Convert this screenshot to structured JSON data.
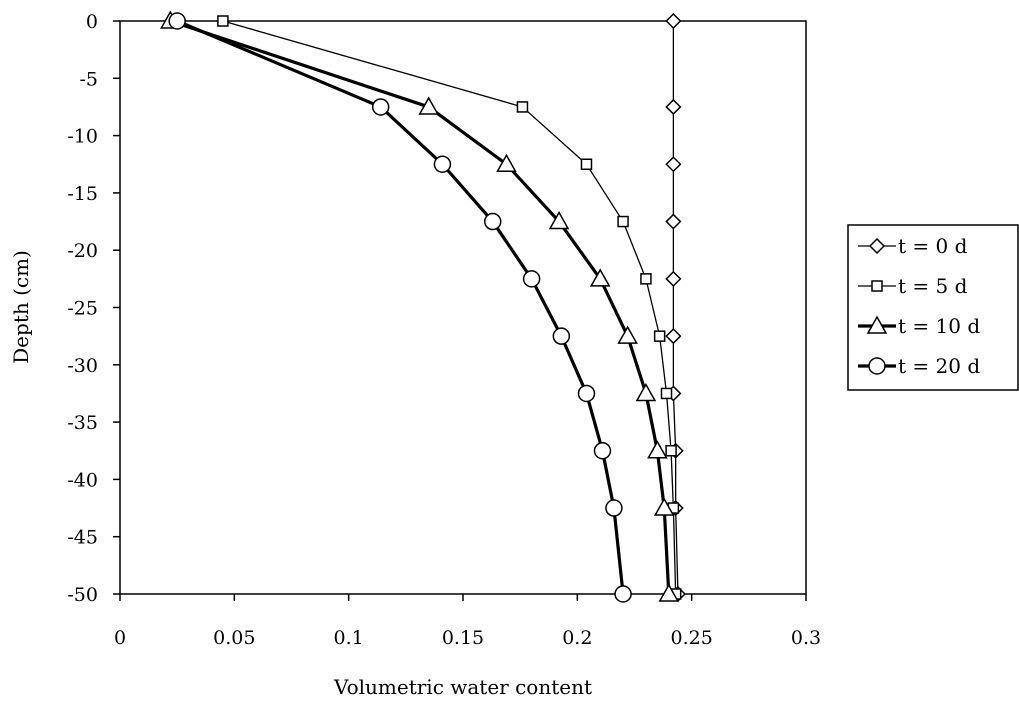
{
  "chart_data": {
    "type": "line",
    "title": "",
    "xlabel": "Volumetric water content",
    "ylabel": "Depth (cm)",
    "xlim": [
      0,
      0.3
    ],
    "ylim": [
      -50,
      0
    ],
    "xticks": [
      "0",
      "0.05",
      "0.1",
      "0.15",
      "0.2",
      "0.25",
      "0.3"
    ],
    "yticks": [
      "0",
      "-5",
      "-10",
      "-15",
      "-20",
      "-25",
      "-30",
      "-35",
      "-40",
      "-45",
      "-50"
    ],
    "grid": false,
    "legend_position": "right",
    "series": [
      {
        "name": "t = 0 d",
        "marker": "diamond",
        "line_weight": "thin",
        "points": [
          [
            0.242,
            0
          ],
          [
            0.242,
            -7.5
          ],
          [
            0.242,
            -12.5
          ],
          [
            0.242,
            -17.5
          ],
          [
            0.242,
            -22.5
          ],
          [
            0.242,
            -27.5
          ],
          [
            0.242,
            -32.5
          ],
          [
            0.243,
            -37.5
          ],
          [
            0.243,
            -42.5
          ],
          [
            0.244,
            -50
          ]
        ]
      },
      {
        "name": "t = 5 d",
        "marker": "square",
        "line_weight": "thin",
        "points": [
          [
            0.045,
            0
          ],
          [
            0.176,
            -7.5
          ],
          [
            0.204,
            -12.5
          ],
          [
            0.22,
            -17.5
          ],
          [
            0.23,
            -22.5
          ],
          [
            0.236,
            -27.5
          ],
          [
            0.239,
            -32.5
          ],
          [
            0.241,
            -37.5
          ],
          [
            0.242,
            -42.5
          ],
          [
            0.243,
            -50
          ]
        ]
      },
      {
        "name": "t = 10 d",
        "marker": "triangle",
        "line_weight": "thick",
        "points": [
          [
            0.022,
            0
          ],
          [
            0.135,
            -7.5
          ],
          [
            0.169,
            -12.5
          ],
          [
            0.192,
            -17.5
          ],
          [
            0.21,
            -22.5
          ],
          [
            0.222,
            -27.5
          ],
          [
            0.23,
            -32.5
          ],
          [
            0.235,
            -37.5
          ],
          [
            0.238,
            -42.5
          ],
          [
            0.24,
            -50
          ]
        ]
      },
      {
        "name": "t = 20 d",
        "marker": "circle",
        "line_weight": "thick",
        "points": [
          [
            0.025,
            0
          ],
          [
            0.114,
            -7.5
          ],
          [
            0.141,
            -12.5
          ],
          [
            0.163,
            -17.5
          ],
          [
            0.18,
            -22.5
          ],
          [
            0.193,
            -27.5
          ],
          [
            0.204,
            -32.5
          ],
          [
            0.211,
            -37.5
          ],
          [
            0.216,
            -42.5
          ],
          [
            0.22,
            -50
          ]
        ]
      }
    ]
  }
}
